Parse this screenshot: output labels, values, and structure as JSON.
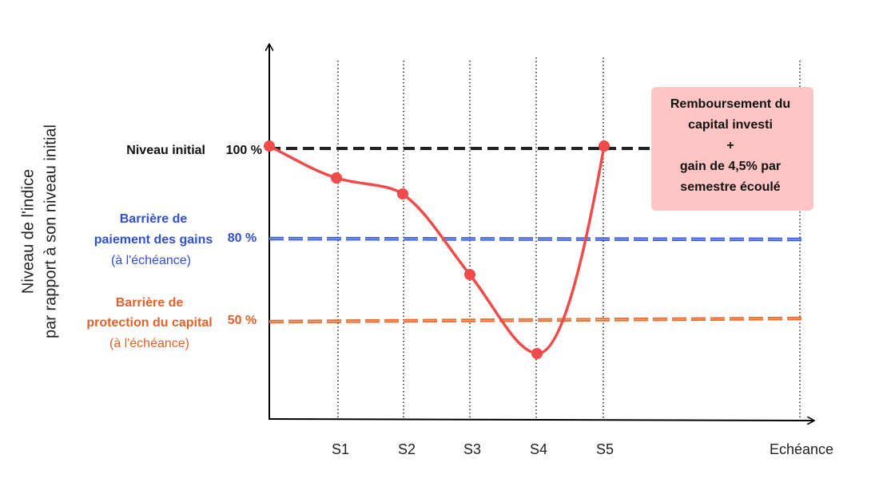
{
  "y_axis_label": [
    "Niveau de l'indice",
    "par rapport à son niveau initial"
  ],
  "levels": [
    {
      "label": [
        "Niveau initial"
      ],
      "note": null,
      "value_label": "100 %"
    },
    {
      "label": [
        "Barrière de",
        "paiement des gains"
      ],
      "note": "(à l'échéance)",
      "value_label": "80 %"
    },
    {
      "label": [
        "Barrière de",
        "protection du capital"
      ],
      "note": "(à l'échéance)",
      "value_label": "50 %"
    }
  ],
  "periods": [
    "S1",
    "S2",
    "S3",
    "S4",
    "S5",
    "Echéance"
  ],
  "callout": [
    "Remboursement du",
    "capital investi",
    "+",
    "gain de 4,5% par",
    "semestre écoulé"
  ]
}
